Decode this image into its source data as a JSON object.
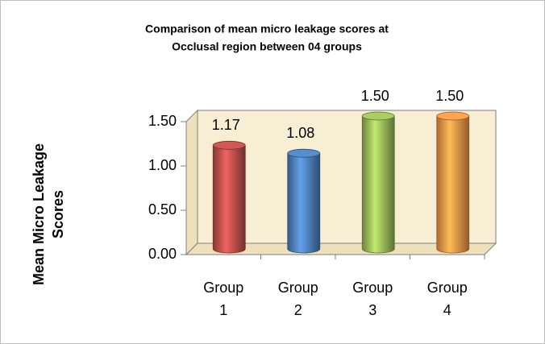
{
  "chart_data": {
    "type": "bar",
    "title": [
      "Comparison of mean micro leakage scores at",
      "Occlusal region between 04 groups"
    ],
    "ylabel": [
      "Mean Micro Leakage",
      "Scores"
    ],
    "categories": [
      "Group 1",
      "Group 2",
      "Group 3",
      "Group 4"
    ],
    "values": [
      1.17,
      1.08,
      1.5,
      1.5
    ],
    "value_labels": [
      "1.17",
      "1.08",
      "1.50",
      "1.50"
    ],
    "colors": [
      "#c0504d",
      "#4f81bd",
      "#9bbb59",
      "#f79646"
    ],
    "ylim": [
      0,
      1.5
    ],
    "yticks": [
      {
        "value": 0,
        "label": "0.00"
      },
      {
        "value": 0.5,
        "label": "0.50"
      },
      {
        "value": 1,
        "label": "1.00"
      },
      {
        "value": 1.5,
        "label": "1.50"
      }
    ],
    "grid": false
  }
}
